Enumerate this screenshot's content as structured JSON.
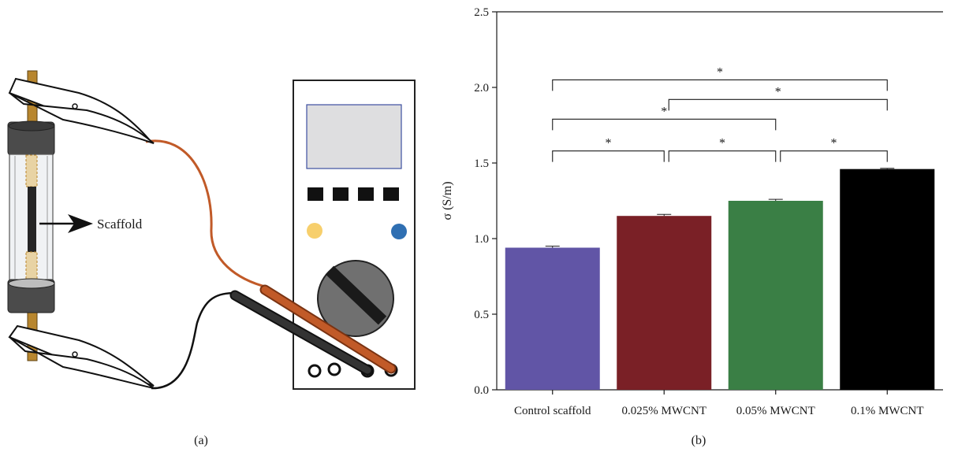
{
  "panel_a": {
    "label": "(a)",
    "scaffold_label": "Scaffold",
    "colors": {
      "probe_red": "#c15a28",
      "probe_black": "#333333",
      "rod": "#b8862e",
      "knob": "#707070",
      "button_yellow": "#f7cf6c",
      "button_blue": "#2f6fb2",
      "screen": "#dedee0"
    }
  },
  "panel_b": {
    "label": "(b)",
    "significance_marker": "*"
  },
  "chart_data": {
    "type": "bar",
    "categories": [
      "Control scaffold",
      "0.025% MWCNT",
      "0.05% MWCNT",
      "0.1% MWCNT"
    ],
    "values": [
      0.94,
      1.15,
      1.25,
      1.46
    ],
    "errors": [
      0.01,
      0.01,
      0.01,
      0.005
    ],
    "colors": [
      "#6155a6",
      "#7a2026",
      "#3a7f45",
      "#000000"
    ],
    "xlabel": "",
    "ylabel": "σ (S/m)",
    "ylim": [
      0,
      2.5
    ],
    "yticks": [
      0.0,
      0.5,
      1.0,
      1.5,
      2.0,
      2.5
    ],
    "ytick_labels": [
      "0.0",
      "0.5",
      "1.0",
      "1.5",
      "2.0",
      "2.5"
    ],
    "grid": false,
    "significance": [
      {
        "from": 0,
        "to": 1,
        "level": 1.58,
        "label": "*"
      },
      {
        "from": 1,
        "to": 2,
        "level": 1.58,
        "label": "*"
      },
      {
        "from": 2,
        "to": 3,
        "level": 1.58,
        "label": "*"
      },
      {
        "from": 0,
        "to": 2,
        "level": 1.79,
        "label": "*"
      },
      {
        "from": 1,
        "to": 3,
        "level": 1.92,
        "label": "*"
      },
      {
        "from": 0,
        "to": 3,
        "level": 2.05,
        "label": "*"
      }
    ]
  }
}
